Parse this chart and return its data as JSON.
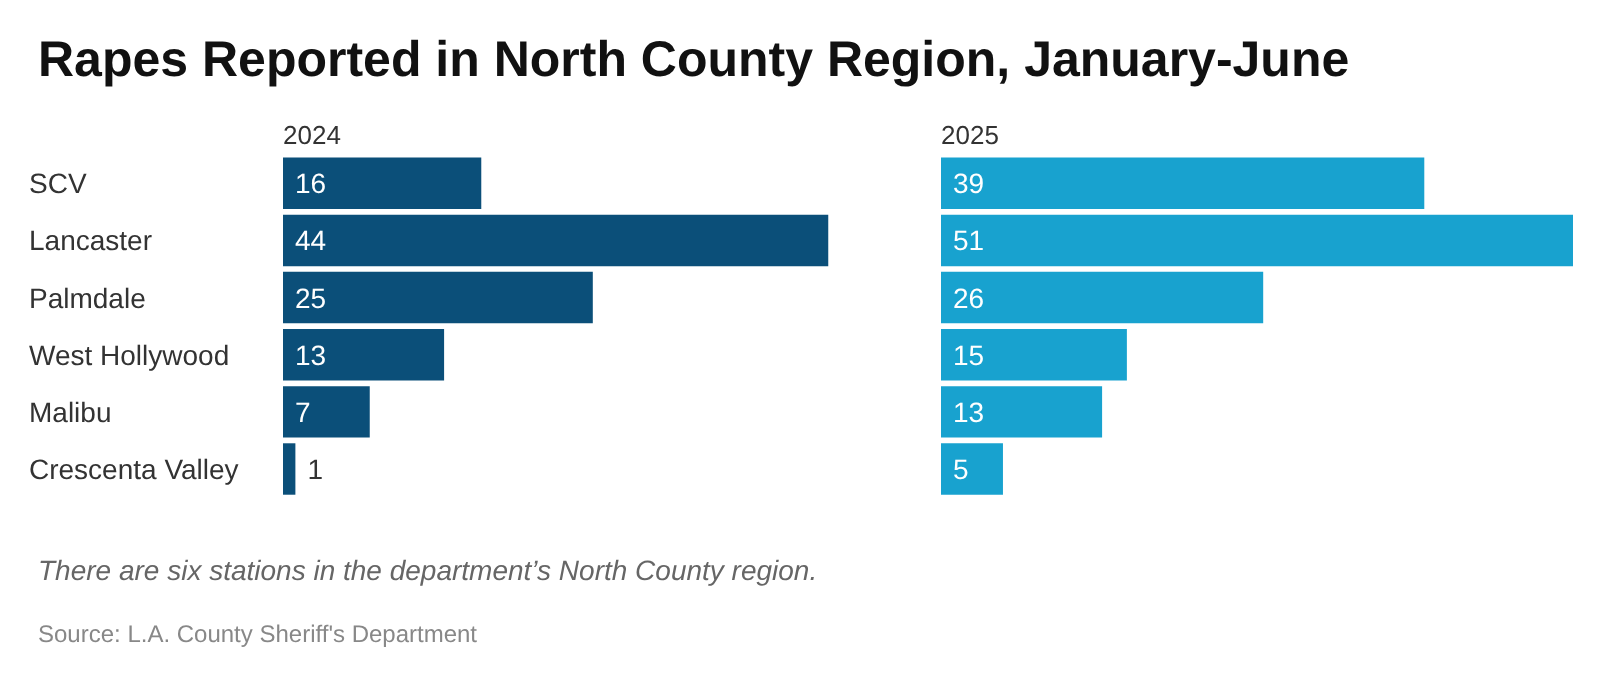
{
  "chart_data": [
    {
      "type": "bar",
      "orientation": "horizontal",
      "title": "Rapes Reported in North County Region, January-June",
      "subtitle": "2024",
      "categories": [
        "SCV",
        "Lancaster",
        "Palmdale",
        "West Hollywood",
        "Malibu",
        "Crescenta Valley"
      ],
      "values": [
        16,
        44,
        25,
        13,
        7,
        1
      ],
      "color": "#0b4f79",
      "data_labels": true,
      "annotations": [
        "There are six stations in the department’s North County region.",
        "Source: L.A. County Sheriff's Department"
      ]
    },
    {
      "type": "bar",
      "orientation": "horizontal",
      "subtitle": "2025",
      "categories": [
        null,
        null,
        null,
        null,
        null,
        null
      ],
      "values": [
        39,
        51,
        26,
        15,
        13,
        5
      ],
      "color": "#18a2cf",
      "data_labels": true
    }
  ]
}
